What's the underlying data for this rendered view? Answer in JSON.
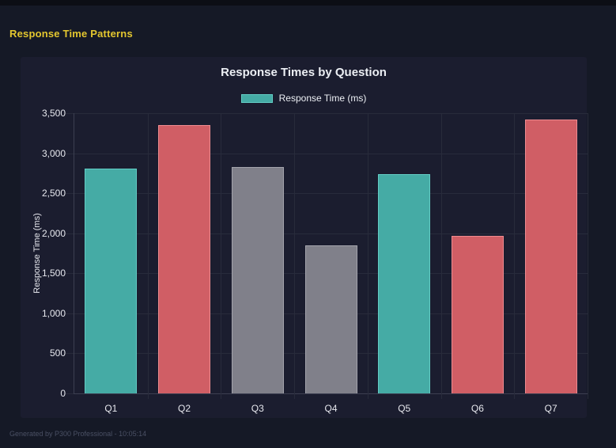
{
  "page": {
    "header": {
      "title": "Response Time Patterns"
    },
    "footer": {
      "text": "Generated by P300 Professional - 10:05:14"
    }
  },
  "chart_data": {
    "type": "bar",
    "title": "Response Times by Question",
    "categories": [
      "Q1",
      "Q2",
      "Q3",
      "Q4",
      "Q5",
      "Q6",
      "Q7"
    ],
    "series": [
      {
        "name": "Response Time (ms)",
        "values": [
          2810,
          3350,
          2830,
          1850,
          2740,
          1970,
          3420
        ]
      }
    ],
    "bar_colors": [
      "#45aba5",
      "#d05e65",
      "#80808a",
      "#80808a",
      "#45aba5",
      "#d05e65",
      "#d05e65"
    ],
    "bar_border_colors": [
      "#63cdc5",
      "#ee8b90",
      "#a3a3ac",
      "#a3a3ac",
      "#63cdc5",
      "#ee8b90",
      "#ee8b90"
    ],
    "xlabel": "",
    "ylabel": "Response Time (ms)",
    "ylim": [
      0,
      3500
    ],
    "ytick_step": 500,
    "ytick_labels": [
      "0",
      "500",
      "1,000",
      "1,500",
      "2,000",
      "2,500",
      "3,000",
      "3,500"
    ],
    "grid": true,
    "legend_position": "top"
  },
  "theme": {
    "page_bg": "#151926",
    "top_strip_bg": "#0c0e15",
    "panel_bg": "#1b1d2f",
    "grid_color": "#282b3b",
    "axis_color": "#3c3f51",
    "text_color": "#eceff4",
    "tick_text_color": "#e7e8ee",
    "heading_color": "#e4c72f",
    "footer_color": "#4a5064",
    "series_color": "#45aba5",
    "series_border_color": "#63cdc5"
  }
}
